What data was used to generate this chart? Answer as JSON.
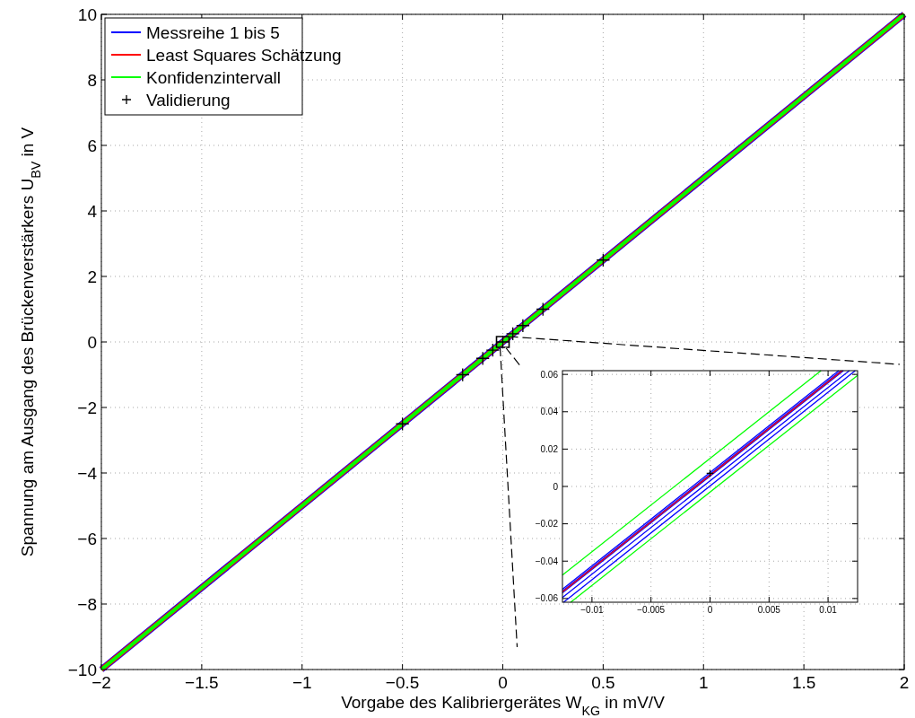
{
  "chart_data": [
    {
      "type": "line",
      "xlabel": "Vorgabe des Kalibriergerätes W$_{KG}$ in mV/V",
      "ylabel": "Spannung am Ausgang des Brückenverstärkers U$_{BV}$ in V",
      "xlim": [
        -2,
        2
      ],
      "ylim": [
        -10,
        10
      ],
      "xticks": [
        -2,
        -1.5,
        -1,
        -0.5,
        0,
        0.5,
        1,
        1.5,
        2
      ],
      "yticks": [
        -10,
        -8,
        -6,
        -4,
        -2,
        0,
        2,
        4,
        6,
        8,
        10
      ],
      "grid": true,
      "legend": "top left",
      "series": [
        {
          "name": "Messreihe 1 bis 5",
          "color": "#0000ff",
          "x": [
            -2,
            2
          ],
          "values": [
            -10,
            10
          ]
        },
        {
          "name": "Least Squares Schätzung",
          "color": "#ff0000",
          "x": [
            -2,
            2
          ],
          "values": [
            -10,
            10
          ]
        },
        {
          "name": "Konfidenzintervall",
          "color": "#00ff00",
          "x": [
            -2,
            2
          ],
          "values": [
            -10,
            10
          ]
        },
        {
          "name": "Validierung",
          "type": "scatter",
          "marker": "cross",
          "color": "#000000",
          "x": [
            -0.5,
            -0.2,
            -0.1,
            -0.05,
            0,
            0.05,
            0.1,
            0.2,
            0.5
          ],
          "values": [
            -2.5,
            -1,
            -0.5,
            -0.25,
            0,
            0.25,
            0.5,
            1,
            2.5
          ]
        }
      ]
    },
    {
      "type": "line",
      "xlim": [
        -0.0125,
        0.0125
      ],
      "ylim": [
        -0.062,
        0.062
      ],
      "xticks": [
        {
          "value": -0.01,
          "label": "−0.01"
        },
        {
          "value": -0.005,
          "label": "−0.005"
        },
        0,
        0.005,
        0.01
      ],
      "yticks": [
        {
          "value": -0.06,
          "label": "−0.06"
        },
        {
          "value": -0.04,
          "label": "−0.04"
        },
        {
          "value": -0.02,
          "label": "−0.02"
        },
        0,
        0.02,
        0.04,
        0.06
      ],
      "grid": true,
      "series": [
        {
          "color": "#00ff00",
          "x": [
            -0.0125,
            0.0094
          ],
          "values": [
            -0.0475,
            0.062
          ]
        },
        {
          "color": "#00ff00",
          "x": [
            -0.0118,
            0.0125
          ],
          "values": [
            -0.062,
            0.0595
          ]
        },
        {
          "color": "#0000ff",
          "x": [
            -0.0125,
            0.0109
          ],
          "values": [
            -0.055,
            0.062
          ]
        },
        {
          "color": "#0000ff",
          "x": [
            -0.0125,
            0.0111
          ],
          "values": [
            -0.056,
            0.062
          ]
        },
        {
          "color": "#0000ff",
          "x": [
            -0.0125,
            0.0113
          ],
          "values": [
            -0.057,
            0.062
          ]
        },
        {
          "color": "#0000ff",
          "x": [
            -0.0125,
            0.0118
          ],
          "values": [
            -0.0595,
            0.062
          ]
        },
        {
          "color": "#0000ff",
          "x": [
            -0.0124,
            0.0123
          ],
          "values": [
            -0.062,
            0.062
          ]
        },
        {
          "color": "#ff0000",
          "x": [
            -0.0125,
            0.0112
          ],
          "values": [
            -0.0565,
            0.062
          ]
        },
        {
          "type": "scatter",
          "marker": "cross",
          "color": "#000000",
          "x": [
            0
          ],
          "values": [
            0.007
          ]
        }
      ]
    }
  ]
}
